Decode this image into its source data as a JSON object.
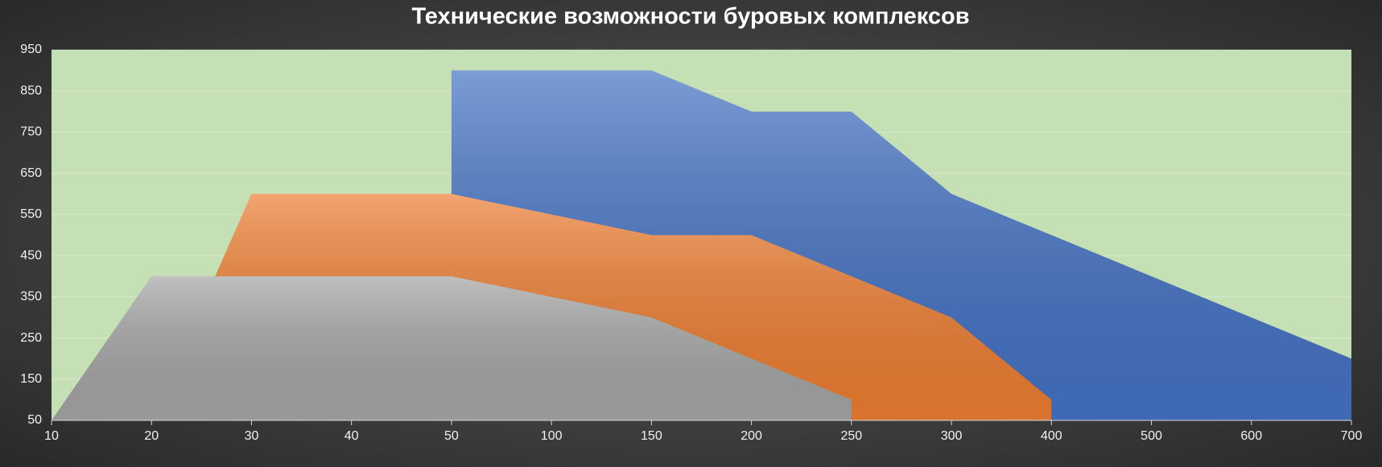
{
  "chart_data": {
    "type": "area",
    "title": "Технические возможности буровых комплексов",
    "categories": [
      "10",
      "20",
      "30",
      "40",
      "50",
      "100",
      "150",
      "200",
      "250",
      "300",
      "400",
      "500",
      "600",
      "700"
    ],
    "series": [
      {
        "color": "#4472c4",
        "values": [
          null,
          null,
          null,
          null,
          900,
          900,
          900,
          800,
          800,
          600,
          500,
          400,
          300,
          200
        ]
      },
      {
        "color": "#ed7d31",
        "values": [
          null,
          50,
          600,
          600,
          600,
          550,
          500,
          500,
          400,
          300,
          100,
          null,
          null,
          null
        ]
      },
      {
        "color": "#a5a5a5",
        "values": [
          50,
          400,
          400,
          400,
          400,
          350,
          300,
          200,
          100,
          null,
          null,
          null,
          null,
          null
        ]
      }
    ],
    "ylim": [
      50,
      950
    ],
    "yticks": [
      50,
      150,
      250,
      350,
      450,
      550,
      650,
      750,
      850,
      950
    ],
    "grid": true,
    "plot_background": "#c5e0b4"
  }
}
